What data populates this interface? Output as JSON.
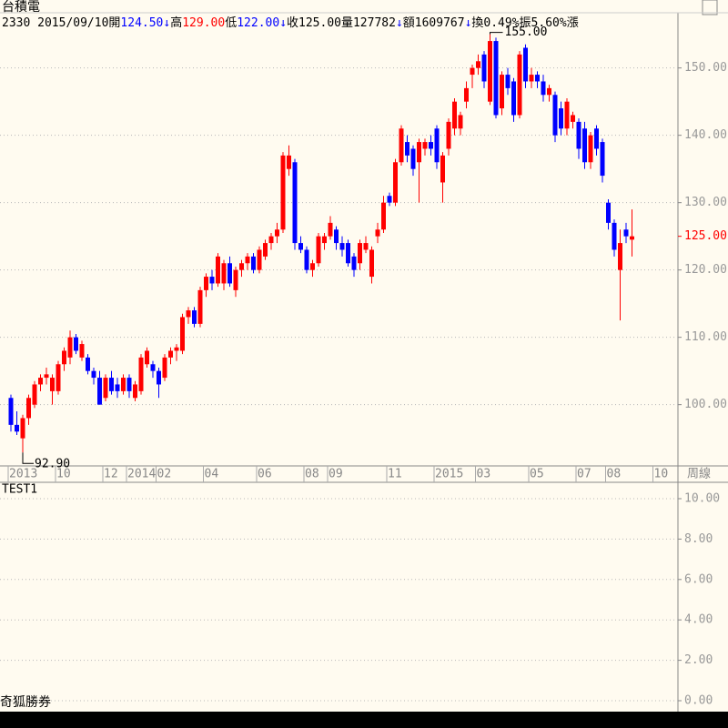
{
  "chart_data": {
    "type": "candlestick",
    "title": "台積電",
    "header": [
      {
        "text": "2330 2015/09/10",
        "color": "#000000"
      },
      {
        "text": "開",
        "color": "#000000"
      },
      {
        "text": "124.50",
        "color": "#0000ff"
      },
      {
        "text": "↓",
        "color": "#0000ff"
      },
      {
        "text": "高",
        "color": "#000000"
      },
      {
        "text": "129.00",
        "color": "#ff0000"
      },
      {
        "text": "低",
        "color": "#000000"
      },
      {
        "text": "122.00",
        "color": "#0000ff"
      },
      {
        "text": "↓",
        "color": "#0000ff"
      },
      {
        "text": "收125.00",
        "color": "#000000"
      },
      {
        "text": "量127782",
        "color": "#000000"
      },
      {
        "text": "↓",
        "color": "#0000ff"
      },
      {
        "text": "額1609767",
        "color": "#000000"
      },
      {
        "text": "↓",
        "color": "#0000ff"
      },
      {
        "text": "換0.49%",
        "color": "#000000"
      },
      {
        "text": "振5.60%",
        "color": "#000000"
      },
      {
        "text": "漲",
        "color": "#000000"
      }
    ],
    "period": "周線",
    "up_color": "#ff0000",
    "down_color": "#0000ff",
    "categories": [
      "2013",
      null,
      null,
      null,
      null,
      null,
      null,
      null,
      "10",
      null,
      null,
      null,
      null,
      null,
      null,
      null,
      "12",
      null,
      null,
      null,
      "2014",
      null,
      null,
      null,
      null,
      "02",
      null,
      null,
      null,
      null,
      null,
      null,
      null,
      "04",
      null,
      null,
      null,
      null,
      null,
      null,
      null,
      null,
      "06",
      null,
      null,
      null,
      null,
      null,
      null,
      null,
      "08",
      null,
      null,
      null,
      "09",
      null,
      null,
      null,
      null,
      null,
      null,
      null,
      null,
      null,
      "11",
      null,
      null,
      null,
      null,
      null,
      null,
      null,
      "2015",
      null,
      null,
      null,
      null,
      null,
      null,
      "03",
      null,
      null,
      null,
      null,
      null,
      null,
      null,
      null,
      "05",
      null,
      null,
      null,
      null,
      null,
      null,
      null,
      "07",
      null,
      null,
      null,
      null,
      "08",
      null,
      null,
      null,
      null,
      null,
      null,
      null,
      "10"
    ],
    "open": [
      101,
      97,
      95,
      98,
      100,
      103,
      104,
      102,
      102,
      106,
      107,
      110,
      107,
      107,
      105,
      104,
      101,
      104,
      103,
      102,
      104,
      101,
      102,
      106,
      106,
      105,
      104,
      107,
      108,
      108,
      113,
      114,
      112,
      117,
      119,
      118,
      118,
      121,
      117,
      120,
      121,
      122,
      120,
      122,
      124,
      125,
      126,
      135,
      136,
      124,
      123,
      120,
      121,
      124,
      125,
      126,
      124,
      124,
      122,
      121,
      123,
      119,
      125,
      126,
      131,
      130,
      136,
      139,
      138,
      136,
      138,
      139,
      141,
      133,
      138,
      141,
      141,
      145,
      149,
      150,
      152,
      145,
      154,
      144,
      149,
      148,
      143,
      153,
      148,
      149,
      148,
      146,
      146,
      144,
      141,
      142,
      142,
      141,
      136,
      141,
      139,
      130,
      127,
      120,
      126,
      124.5,
      null,
      null,
      null,
      null
    ],
    "high": [
      101.5,
      99,
      98.5,
      101.5,
      103.5,
      104.5,
      105.5,
      104.5,
      106.5,
      108.5,
      111,
      110.5,
      109.5,
      107.5,
      105.5,
      105,
      104.5,
      105,
      104,
      104.5,
      104.5,
      103.5,
      107.5,
      108.5,
      106.5,
      105.5,
      107.5,
      108.5,
      109,
      113.5,
      114.5,
      114.5,
      117.5,
      119.5,
      120,
      122.5,
      121.5,
      122,
      120.5,
      121.5,
      122.5,
      122.5,
      123.5,
      124.5,
      125.5,
      127,
      137.5,
      138.5,
      136.5,
      125,
      123.5,
      121.5,
      125.5,
      125.5,
      128,
      126.5,
      125,
      124.5,
      122.5,
      124.5,
      125,
      123.5,
      127,
      131,
      131.5,
      136.5,
      141.5,
      140,
      138.5,
      139.5,
      139.5,
      140,
      141.5,
      137.5,
      142.5,
      145.5,
      143.5,
      148,
      150.5,
      152,
      152.5,
      155,
      154.5,
      149.5,
      150,
      148.5,
      152.5,
      153.5,
      150,
      149.5,
      149,
      147.5,
      146.5,
      145,
      145.5,
      143.5,
      142.5,
      142,
      140.5,
      141.5,
      139.5,
      130.5,
      127.5,
      126,
      127,
      129,
      null,
      null,
      null,
      null
    ],
    "low": [
      96,
      95.5,
      92.9,
      97,
      99.5,
      102,
      103,
      100,
      101.5,
      105,
      106,
      107.5,
      106.5,
      104.5,
      103,
      100,
      100.5,
      101.5,
      101,
      101.5,
      101,
      100.5,
      101.5,
      105.5,
      104,
      101,
      103.5,
      106,
      106.5,
      107.5,
      112,
      111.5,
      111.5,
      116,
      117,
      117.5,
      117,
      117.5,
      116,
      119,
      120,
      119.5,
      119.5,
      121.5,
      123,
      124,
      125.5,
      134,
      123,
      122.5,
      119.5,
      119,
      120.5,
      123,
      124.5,
      123,
      122,
      120.5,
      119,
      120,
      122.5,
      118,
      124,
      125.5,
      129.5,
      129.5,
      135.5,
      136,
      134,
      130,
      137,
      137,
      135,
      130,
      137,
      140,
      140,
      144,
      147,
      149,
      147,
      144.5,
      142.5,
      143,
      146,
      142,
      142.5,
      147,
      147,
      147,
      145,
      145,
      139,
      140,
      140,
      141,
      136.5,
      135,
      135,
      137,
      133,
      126,
      122,
      112.5,
      124,
      122,
      null,
      null,
      null,
      null
    ],
    "close": [
      97,
      96,
      98,
      101,
      103,
      104,
      104.5,
      104,
      106,
      108,
      110,
      108,
      109,
      105,
      104,
      100,
      104,
      102,
      102,
      104,
      102,
      103,
      107,
      108,
      105,
      103,
      107,
      108,
      108.5,
      113,
      114,
      112,
      117,
      119,
      118,
      122,
      121,
      118,
      120,
      121,
      122,
      120,
      123,
      124,
      125,
      126,
      137,
      137,
      124,
      123,
      120,
      121,
      125,
      125,
      127,
      124,
      123,
      121,
      120,
      124,
      124,
      123,
      126,
      130,
      130,
      136,
      141,
      137,
      135,
      139,
      139,
      138,
      136,
      137,
      142,
      145,
      143,
      147,
      150,
      151,
      148,
      154,
      143,
      149,
      147,
      143,
      152,
      148,
      149,
      148,
      146,
      147,
      140,
      141,
      145,
      143,
      138,
      136,
      140,
      138,
      134,
      127,
      123,
      124,
      125,
      125,
      null,
      null,
      null,
      null
    ],
    "annotations": [
      {
        "index": 2,
        "value": 92.9,
        "label": "92.90"
      },
      {
        "index": 81,
        "value": 155,
        "label": "155.00"
      }
    ],
    "last_price": {
      "value": 125,
      "label": "125.00",
      "color": "#ff0000"
    },
    "ylim": [
      90.9,
      158.2
    ],
    "yticks": [
      {
        "value": 100,
        "label": "100.00"
      },
      {
        "value": 110,
        "label": "110.00"
      },
      {
        "value": 120,
        "label": "120.00"
      },
      {
        "value": 130,
        "label": "130.00"
      },
      {
        "value": 140,
        "label": "140.00"
      },
      {
        "value": 150,
        "label": "150.00"
      }
    ],
    "grid": true,
    "sub_panel": {
      "title": "TEST1",
      "ylim": [
        -0.45,
        10.72
      ],
      "yticks": [
        {
          "value": 0,
          "label": "0.00"
        },
        {
          "value": 2,
          "label": "2.00"
        },
        {
          "value": 4,
          "label": "4.00"
        },
        {
          "value": 6,
          "label": "6.00"
        },
        {
          "value": 8,
          "label": "8.00"
        },
        {
          "value": 10,
          "label": "10.00"
        }
      ]
    },
    "footer": "奇狐勝券"
  }
}
